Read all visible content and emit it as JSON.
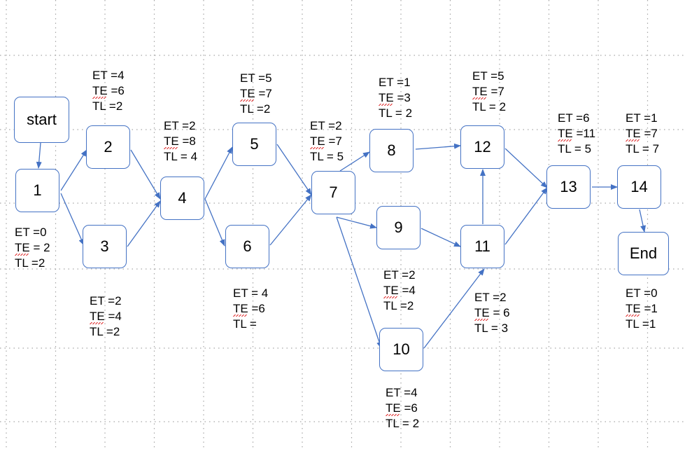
{
  "nodes": [
    {
      "id": "start",
      "label": "start"
    },
    {
      "id": "n1",
      "label": "1"
    },
    {
      "id": "n2",
      "label": "2"
    },
    {
      "id": "n3",
      "label": "3"
    },
    {
      "id": "n4",
      "label": "4"
    },
    {
      "id": "n5",
      "label": "5"
    },
    {
      "id": "n6",
      "label": "6"
    },
    {
      "id": "n7",
      "label": "7"
    },
    {
      "id": "n8",
      "label": "8"
    },
    {
      "id": "n9",
      "label": "9"
    },
    {
      "id": "n10",
      "label": "10"
    },
    {
      "id": "n11",
      "label": "11"
    },
    {
      "id": "n12",
      "label": "12"
    },
    {
      "id": "n13",
      "label": "13"
    },
    {
      "id": "n14",
      "label": "14"
    },
    {
      "id": "end",
      "label": "End"
    }
  ],
  "edges": [
    [
      "start",
      "n1"
    ],
    [
      "n1",
      "n2"
    ],
    [
      "n1",
      "n3"
    ],
    [
      "n2",
      "n4"
    ],
    [
      "n3",
      "n4"
    ],
    [
      "n4",
      "n5"
    ],
    [
      "n4",
      "n6"
    ],
    [
      "n5",
      "n7"
    ],
    [
      "n6",
      "n7"
    ],
    [
      "n7",
      "n8"
    ],
    [
      "n7",
      "n9"
    ],
    [
      "n7",
      "n10"
    ],
    [
      "n8",
      "n12"
    ],
    [
      "n9",
      "n11"
    ],
    [
      "n10",
      "n11"
    ],
    [
      "n11",
      "n12"
    ],
    [
      "n12",
      "n13"
    ],
    [
      "n11",
      "n13"
    ],
    [
      "n13",
      "n14"
    ],
    [
      "n14",
      "end"
    ]
  ],
  "annotations": {
    "n1": {
      "et": "ET =0",
      "te": "TE = 2",
      "tl": "TL =2"
    },
    "n2": {
      "et": "ET =4",
      "te": "TE =6",
      "tl": "TL =2"
    },
    "n3": {
      "et": "ET =2",
      "te": "TE =4",
      "tl": "TL =2"
    },
    "n4": {
      "et": "ET =2",
      "te": "TE =8",
      "tl": "TL = 4"
    },
    "n5": {
      "et": "ET =5",
      "te": "TE =7",
      "tl": "TL =2"
    },
    "n6": {
      "et": "ET = 4",
      "te": "TE =6",
      "tl": "TL ="
    },
    "n7": {
      "et": "ET =2",
      "te": "TE =7",
      "tl": "TL = 5"
    },
    "n8": {
      "et": "ET =1",
      "te": "TE =3",
      "tl": "TL = 2"
    },
    "n9": {
      "et": "ET =2",
      "te": "TE =4",
      "tl": "TL =2"
    },
    "n10": {
      "et": "ET =4",
      "te": "TE =6",
      "tl": "TL = 2"
    },
    "n11": {
      "et": "ET =2",
      "te": "TE = 6",
      "tl": "TL = 3"
    },
    "n12": {
      "et": "ET =5",
      "te": "TE =7",
      "tl": "TL = 2"
    },
    "n13": {
      "et": "ET =6",
      "te": "TE =11",
      "tl": "TL = 5"
    },
    "n14": {
      "et": "ET =1",
      "te": "TE =7",
      "tl": "TL = 7"
    },
    "end": {
      "et": "ET =0",
      "te": "TE =1",
      "tl": "TL =1"
    }
  },
  "colors": {
    "line": "#4472c4",
    "grid": "#a6a6a6",
    "squiggle": "#e03030"
  }
}
